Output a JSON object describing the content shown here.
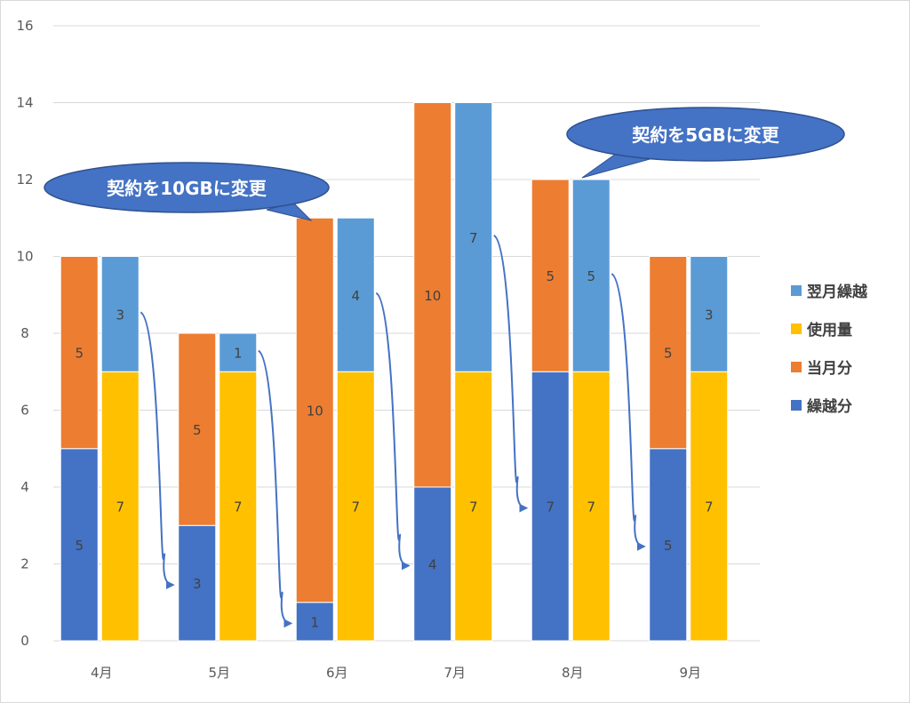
{
  "chart_data": {
    "type": "bar",
    "subtype": "grouped-stacked",
    "categories": [
      "4月",
      "5月",
      "6月",
      "7月",
      "8月",
      "9月"
    ],
    "ylim": [
      0,
      16
    ],
    "yticks": [
      0,
      2,
      4,
      6,
      8,
      10,
      12,
      14,
      16
    ],
    "grid": true,
    "legend_position": "right",
    "stacks": [
      {
        "position": "left",
        "series": [
          {
            "name": "繰越分",
            "color": "#4472C4",
            "values": [
              5,
              3,
              1,
              4,
              7,
              5
            ]
          },
          {
            "name": "当月分",
            "color": "#ED7D31",
            "values": [
              5,
              5,
              10,
              10,
              5,
              5
            ]
          }
        ]
      },
      {
        "position": "right",
        "series": [
          {
            "name": "使用量",
            "color": "#FFC000",
            "values": [
              7,
              7,
              7,
              7,
              7,
              7
            ]
          },
          {
            "name": "翌月繰越",
            "color": "#5B9BD5",
            "values": [
              3,
              1,
              4,
              7,
              5,
              3
            ]
          }
        ]
      }
    ],
    "legend": [
      {
        "name": "翌月繰越",
        "color": "#5B9BD5"
      },
      {
        "name": "使用量",
        "color": "#FFC000"
      },
      {
        "name": "当月分",
        "color": "#ED7D31"
      },
      {
        "name": "繰越分",
        "color": "#4472C4"
      }
    ],
    "annotations": [
      {
        "text": "契約を10GBに変更",
        "category": "6月"
      },
      {
        "text": "契約を5GBに変更",
        "category": "8月"
      }
    ],
    "carry_arrows": [
      {
        "from": "4月",
        "to": "5月"
      },
      {
        "from": "5月",
        "to": "6月"
      },
      {
        "from": "6月",
        "to": "7月"
      },
      {
        "from": "7月",
        "to": "8月"
      },
      {
        "from": "8月",
        "to": "9月"
      }
    ],
    "callout_color": "#4472C4",
    "arrow_color": "#4472C4"
  }
}
